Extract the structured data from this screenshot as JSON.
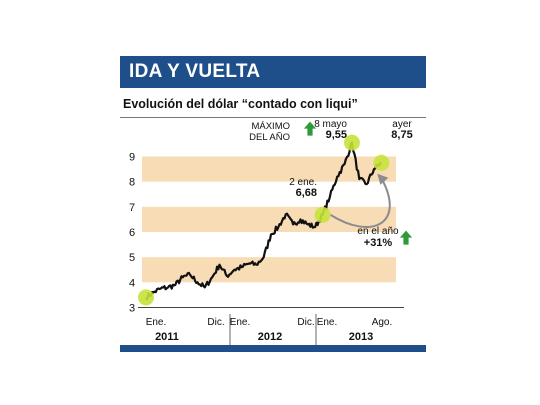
{
  "header": {
    "title": "IDA Y VUELTA"
  },
  "subtitle": "Evolución del dólar “contado con liqui”",
  "colors": {
    "brand": "#1f4f8b",
    "band": "#f7dcb5",
    "line": "#111111",
    "marker": "#c8e23a",
    "arrow": "#2e9a3a",
    "curve": "#8c8c8c"
  },
  "annotations": {
    "max_label": [
      "MÁXIMO",
      "DEL AÑO"
    ],
    "max_date": "8 mayo",
    "max_value": "9,55",
    "ayer_label": "ayer",
    "ayer_value": "8,75",
    "jan_date": "2 ene.",
    "jan_value": "6,68",
    "year_label": "en el año",
    "year_value": "+31%"
  },
  "chart_data": {
    "type": "line",
    "title": "Evolución del dólar “contado con liqui”",
    "xlabel": "",
    "ylabel": "",
    "ylim": [
      3,
      9.5
    ],
    "yticks": [
      "3",
      "4",
      "5",
      "6",
      "7",
      "8",
      "9"
    ],
    "xticks": [
      "Ene.",
      "Dic.",
      "Ene.",
      "Dic.",
      "Ene.",
      "Ago."
    ],
    "years": [
      "2011",
      "2012",
      "2013"
    ],
    "x_domain": [
      "2011-01",
      "2013-09"
    ],
    "grid": false,
    "bands": [
      [
        4,
        5
      ],
      [
        6,
        7
      ],
      [
        8,
        9
      ]
    ],
    "series": [
      {
        "values": [
          [
            "2011-01",
            3.4
          ],
          [
            "2011-02",
            3.6
          ],
          [
            "2011-03",
            3.75
          ],
          [
            "2011-04",
            3.8
          ],
          [
            "2011-05",
            3.9
          ],
          [
            "2011-06",
            4.2
          ],
          [
            "2011-07",
            4.3
          ],
          [
            "2011-08",
            4.0
          ],
          [
            "2011-09",
            3.8
          ],
          [
            "2011-10",
            4.2
          ],
          [
            "2011-11",
            4.7
          ],
          [
            "2011-12",
            4.25
          ],
          [
            "2012-01",
            4.5
          ],
          [
            "2012-02",
            4.6
          ],
          [
            "2012-03",
            4.75
          ],
          [
            "2012-04",
            4.7
          ],
          [
            "2012-05",
            5.0
          ],
          [
            "2012-06",
            5.9
          ],
          [
            "2012-07",
            6.2
          ],
          [
            "2012-08",
            6.7
          ],
          [
            "2012-09",
            6.3
          ],
          [
            "2012-10",
            6.5
          ],
          [
            "2012-11",
            6.3
          ],
          [
            "2012-12",
            6.2
          ],
          [
            "2013-01",
            6.68
          ],
          [
            "2013-02",
            7.4
          ],
          [
            "2013-03",
            8.2
          ],
          [
            "2013-04",
            8.7
          ],
          [
            "2013-05",
            9.55
          ],
          [
            "2013-06",
            8.1
          ],
          [
            "2013-07",
            7.9
          ],
          [
            "2013-08",
            8.5
          ],
          [
            "2013-09",
            8.75
          ]
        ]
      }
    ]
  }
}
